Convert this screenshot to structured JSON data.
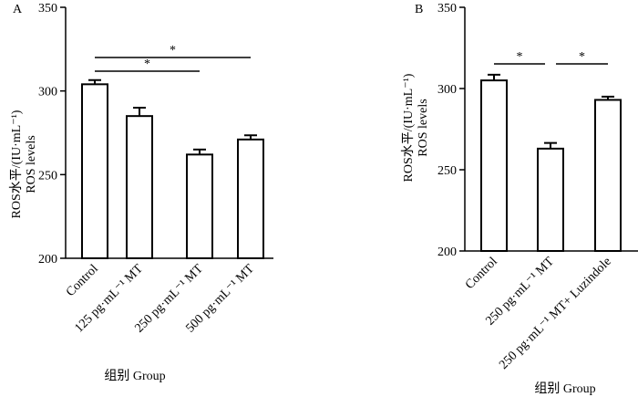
{
  "chart_data": [
    {
      "panel": "A",
      "type": "bar",
      "ylabel_line1": "ROS水平/(IU·mL⁻¹)",
      "ylabel_line2": "ROS levels",
      "xlabel": "组别 Group",
      "ylim": [
        200,
        350
      ],
      "yticks": [
        "200",
        "250",
        "300",
        "350"
      ],
      "categories": [
        "Control",
        "125 pg·mL⁻¹ MT",
        "250 pg·mL⁻¹ MT",
        "500 pg·mL⁻¹ MT"
      ],
      "values": [
        304,
        285,
        262,
        271
      ],
      "errors": [
        2.5,
        5,
        3,
        2.5
      ],
      "significance": [
        {
          "from": 0,
          "to": 2,
          "label": "*"
        },
        {
          "from": 0,
          "to": 3,
          "label": "*"
        }
      ],
      "colors": {
        "bar_fill": "#ffffff",
        "stroke": "#000000"
      }
    },
    {
      "panel": "B",
      "type": "bar",
      "ylabel_line1": "ROS水平/(IU·mL⁻¹)",
      "ylabel_line2": "ROS levels",
      "xlabel": "组别 Group",
      "ylim": [
        200,
        350
      ],
      "yticks": [
        "200",
        "250",
        "300",
        "350"
      ],
      "categories": [
        "Control",
        "250 pg·mL⁻¹ MT",
        "250 pg·mL⁻¹ MT+ Luzindole"
      ],
      "values": [
        305,
        263,
        293
      ],
      "errors": [
        3.5,
        3.5,
        2
      ],
      "significance": [
        {
          "from": 0,
          "to": 1,
          "label": "*"
        },
        {
          "from": 1,
          "to": 2,
          "label": "*"
        }
      ],
      "colors": {
        "bar_fill": "#ffffff",
        "stroke": "#000000"
      }
    }
  ]
}
